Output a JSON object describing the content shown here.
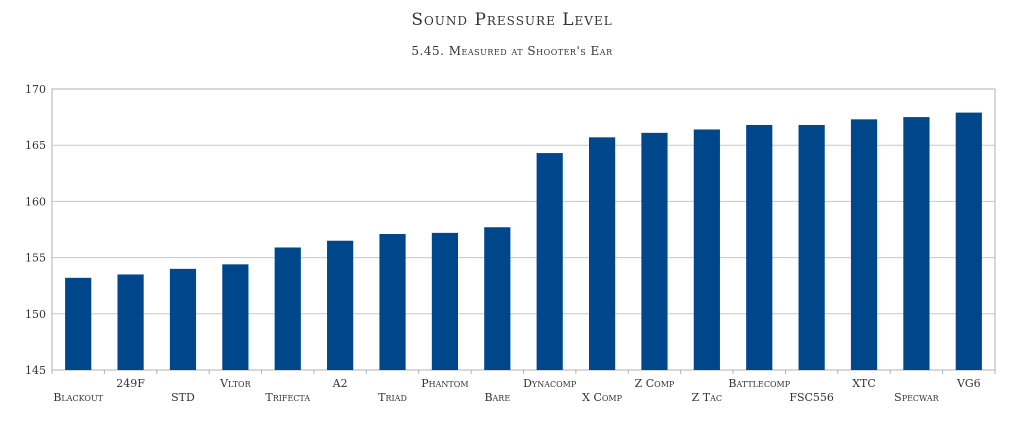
{
  "chart_data": {
    "type": "bar",
    "title": "Sound Pressure Level",
    "subtitle": "5.45. Measured at Shooter's Ear",
    "xlabel": "",
    "ylabel": "",
    "ylim": [
      145,
      170
    ],
    "yticks": [
      145,
      150,
      155,
      160,
      165,
      170
    ],
    "grid": true,
    "legend": "none",
    "bar_color": "#00468b",
    "categories": [
      "Blackout",
      "249F",
      "STD",
      "Vltor",
      "Trifecta",
      "A2",
      "Triad",
      "Phantom",
      "Bare",
      "Dynacomp",
      "X Comp",
      "Z Comp",
      "Z Tac",
      "Battlecomp",
      "FSC556",
      "XTC",
      "Specwar",
      "VG6"
    ],
    "values": [
      153.2,
      153.5,
      154.0,
      154.4,
      155.9,
      156.5,
      157.1,
      157.2,
      157.7,
      164.3,
      165.7,
      166.1,
      166.4,
      166.8,
      166.8,
      167.3,
      167.5,
      167.9
    ]
  }
}
